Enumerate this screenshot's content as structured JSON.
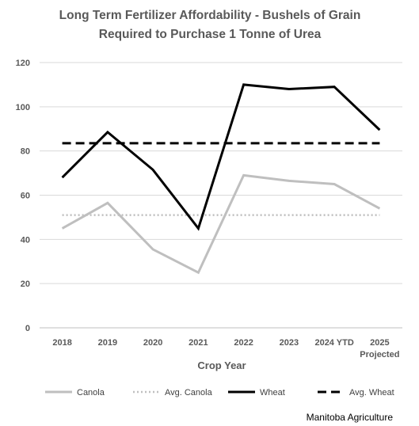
{
  "chart_data": {
    "type": "line",
    "title_lines": [
      "Long Term Fertilizer Affordability - Bushels of Grain",
      "Required to Purchase 1 Tonne of Urea"
    ],
    "xlabel": "Crop Year",
    "ylabel": "",
    "categories": [
      "2018",
      "2019",
      "2020",
      "2021",
      "2022",
      "2023",
      "2024 YTD",
      "2025"
    ],
    "category_sublabels": [
      "",
      "",
      "",
      "",
      "",
      "",
      "",
      "Projected"
    ],
    "ylim": [
      0,
      120
    ],
    "yticks": [
      0,
      20,
      40,
      60,
      80,
      100,
      120
    ],
    "grid": true,
    "legend_position": "bottom",
    "series": [
      {
        "name": "Canola",
        "values": [
          45,
          56.5,
          35.5,
          25,
          69,
          66.5,
          65,
          54
        ],
        "color": "#BFBFBF",
        "style": "solid"
      },
      {
        "name": "Avg. Canola",
        "values": [
          51,
          51,
          51,
          51,
          51,
          51,
          51,
          51
        ],
        "color": "#BFBFBF",
        "style": "dotted"
      },
      {
        "name": "Wheat",
        "values": [
          68,
          88.5,
          71.5,
          45,
          110,
          108,
          109,
          89.5
        ],
        "color": "#000000",
        "style": "solid"
      },
      {
        "name": "Avg. Wheat",
        "values": [
          83.5,
          83.5,
          83.5,
          83.5,
          83.5,
          83.5,
          83.5,
          83.5
        ],
        "color": "#000000",
        "style": "dashed"
      }
    ],
    "source": "Manitoba Agriculture"
  }
}
